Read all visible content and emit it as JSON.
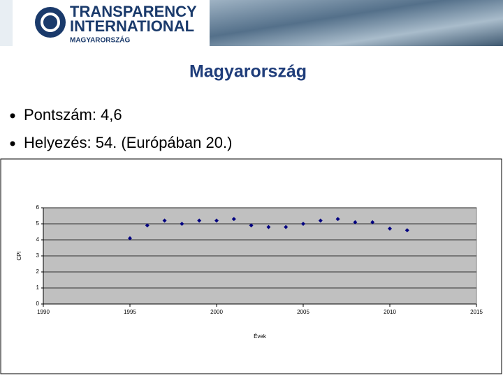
{
  "header": {
    "logo_lines": [
      "TRANSPARENCY",
      "INTERNATIONAL",
      "MAGYARORSZÁG"
    ]
  },
  "title": "Magyarország",
  "bullets": [
    "Pontszám: 4,6",
    "Helyezés: 54. (Európában 20.)"
  ],
  "chart_data": {
    "type": "scatter",
    "x_label": "Évek",
    "y_label": "CPI",
    "series": [
      {
        "name": "CPI",
        "color": "#000080",
        "x": [
          1995,
          1996,
          1997,
          1998,
          1999,
          2000,
          2001,
          2002,
          2003,
          2004,
          2005,
          2006,
          2007,
          2008,
          2009,
          2010,
          2011
        ],
        "values": [
          4.1,
          4.9,
          5.2,
          5.0,
          5.2,
          5.2,
          5.3,
          4.9,
          4.8,
          4.8,
          5.0,
          5.2,
          5.3,
          5.1,
          5.1,
          4.7,
          4.6
        ]
      }
    ],
    "xlim": [
      1990,
      2015
    ],
    "xticks": [
      1990,
      1995,
      2000,
      2005,
      2010,
      2015
    ],
    "ylim": [
      0,
      6
    ],
    "yticks": [
      0,
      1,
      2,
      3,
      4,
      5,
      6
    ],
    "grid": true,
    "plot_background": "#c0c0c0"
  }
}
